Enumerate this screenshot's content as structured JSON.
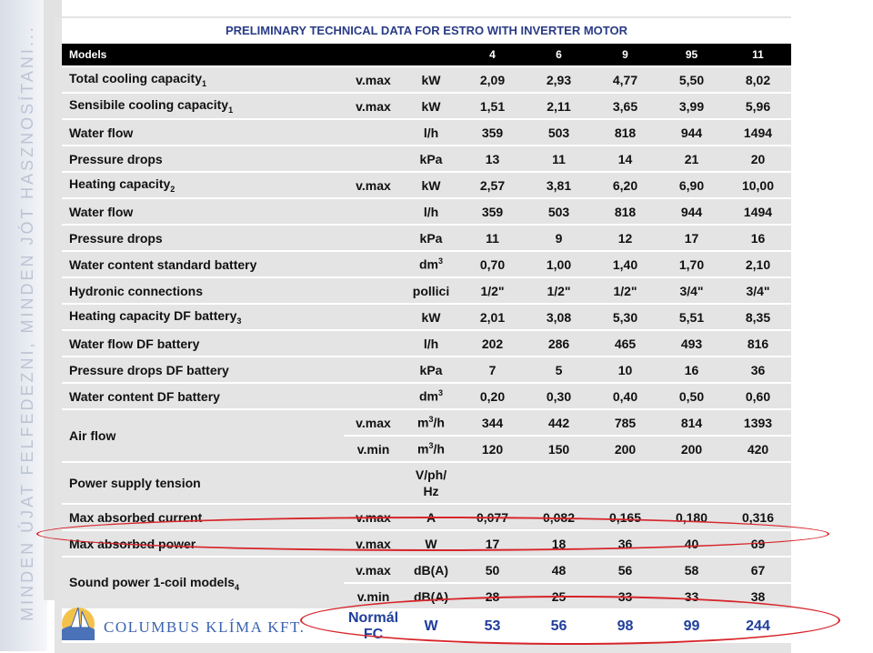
{
  "side_text": "MINDEN ÚJAT FELFEDEZNI, MINDEN JÓT HASZNOSÍTANI...",
  "table": {
    "title": "PRELIMINARY TECHNICAL DATA FOR ESTRO WITH INVERTER MOTOR",
    "models_label": "Models",
    "models": [
      "4",
      "6",
      "9",
      "95",
      "11"
    ],
    "rows": [
      {
        "label": "Total cooling capacity",
        "sub": "1",
        "speed": "v.max",
        "unit": "kW",
        "values": [
          "2,09",
          "2,93",
          "4,77",
          "5,50",
          "8,02"
        ]
      },
      {
        "label": "Sensibile cooling capacity",
        "sub": "1",
        "speed": "v.max",
        "unit": "kW",
        "values": [
          "1,51",
          "2,11",
          "3,65",
          "3,99",
          "5,96"
        ]
      },
      {
        "label": "Water flow",
        "speed": "",
        "unit": "l/h",
        "values": [
          "359",
          "503",
          "818",
          "944",
          "1494"
        ]
      },
      {
        "label": "Pressure drops",
        "speed": "",
        "unit": "kPa",
        "values": [
          "13",
          "11",
          "14",
          "21",
          "20"
        ]
      },
      {
        "label": "Heating capacity",
        "sub": "2",
        "speed": "v.max",
        "unit": "kW",
        "values": [
          "2,57",
          "3,81",
          "6,20",
          "6,90",
          "10,00"
        ]
      },
      {
        "label": "Water flow",
        "speed": "",
        "unit": "l/h",
        "values": [
          "359",
          "503",
          "818",
          "944",
          "1494"
        ]
      },
      {
        "label": "Pressure drops",
        "speed": "",
        "unit": "kPa",
        "values": [
          "11",
          "9",
          "12",
          "17",
          "16"
        ]
      },
      {
        "label": "Water content standard battery",
        "speed": "",
        "unit": "dm",
        "unit_sup": "3",
        "values": [
          "0,70",
          "1,00",
          "1,40",
          "1,70",
          "2,10"
        ]
      },
      {
        "label": "Hydronic connections",
        "speed": "",
        "unit": "pollici",
        "values": [
          "1/2\"",
          "1/2\"",
          "1/2\"",
          "3/4\"",
          "3/4\""
        ]
      },
      {
        "label": "Heating capacity DF battery",
        "sub": "3",
        "speed": "",
        "unit": "kW",
        "values": [
          "2,01",
          "3,08",
          "5,30",
          "5,51",
          "8,35"
        ]
      },
      {
        "label": "Water flow DF battery",
        "speed": "",
        "unit": "l/h",
        "values": [
          "202",
          "286",
          "465",
          "493",
          "816"
        ]
      },
      {
        "label": "Pressure drops DF battery",
        "speed": "",
        "unit": "kPa",
        "values": [
          "7",
          "5",
          "10",
          "16",
          "36"
        ]
      },
      {
        "label": "Water content DF battery",
        "speed": "",
        "unit": "dm",
        "unit_sup": "3",
        "values": [
          "0,20",
          "0,30",
          "0,40",
          "0,50",
          "0,60"
        ]
      }
    ],
    "air_flow": {
      "label": "Air flow",
      "max": {
        "speed": "v.max",
        "unit": "m",
        "unit_sup": "3",
        "unit_tail": "/h",
        "values": [
          "344",
          "442",
          "785",
          "814",
          "1393"
        ]
      },
      "min": {
        "speed": "v.min",
        "unit": "m",
        "unit_sup": "3",
        "unit_tail": "/h",
        "values": [
          "120",
          "150",
          "200",
          "200",
          "420"
        ]
      }
    },
    "power_supply": {
      "label": "Power supply tension",
      "unit_line1": "V/ph/",
      "unit_line2": "Hz"
    },
    "max_current": {
      "label": "Max absorbed current",
      "speed": "v.max",
      "unit": "A",
      "values": [
        "0,077",
        "0,082",
        "0,165",
        "0,180",
        "0,316"
      ]
    },
    "max_power": {
      "label": "Max absorbed power",
      "speed": "v.max",
      "unit": "W",
      "values": [
        "17",
        "18",
        "36",
        "40",
        "69"
      ]
    },
    "sound": {
      "label": "Sound power 1-coil models",
      "sub": "4",
      "max": {
        "speed": "v.max",
        "unit": "dB(A)",
        "values": [
          "50",
          "48",
          "56",
          "58",
          "67"
        ]
      },
      "min": {
        "speed": "v.min",
        "unit": "dB(A)",
        "values": [
          "28",
          "25",
          "33",
          "33",
          "38"
        ]
      }
    },
    "normal_fc": {
      "label": "Normál FC",
      "unit": "W",
      "values": [
        "53",
        "56",
        "98",
        "99",
        "244"
      ]
    }
  },
  "logo": {
    "text": "COLUMBUS KLÍMA KFT."
  },
  "colors": {
    "highlight_ring": "#d7252a",
    "title_text": "#2a3b86",
    "fc_text": "#1f3d9c",
    "logo_text": "#3a62b1"
  }
}
